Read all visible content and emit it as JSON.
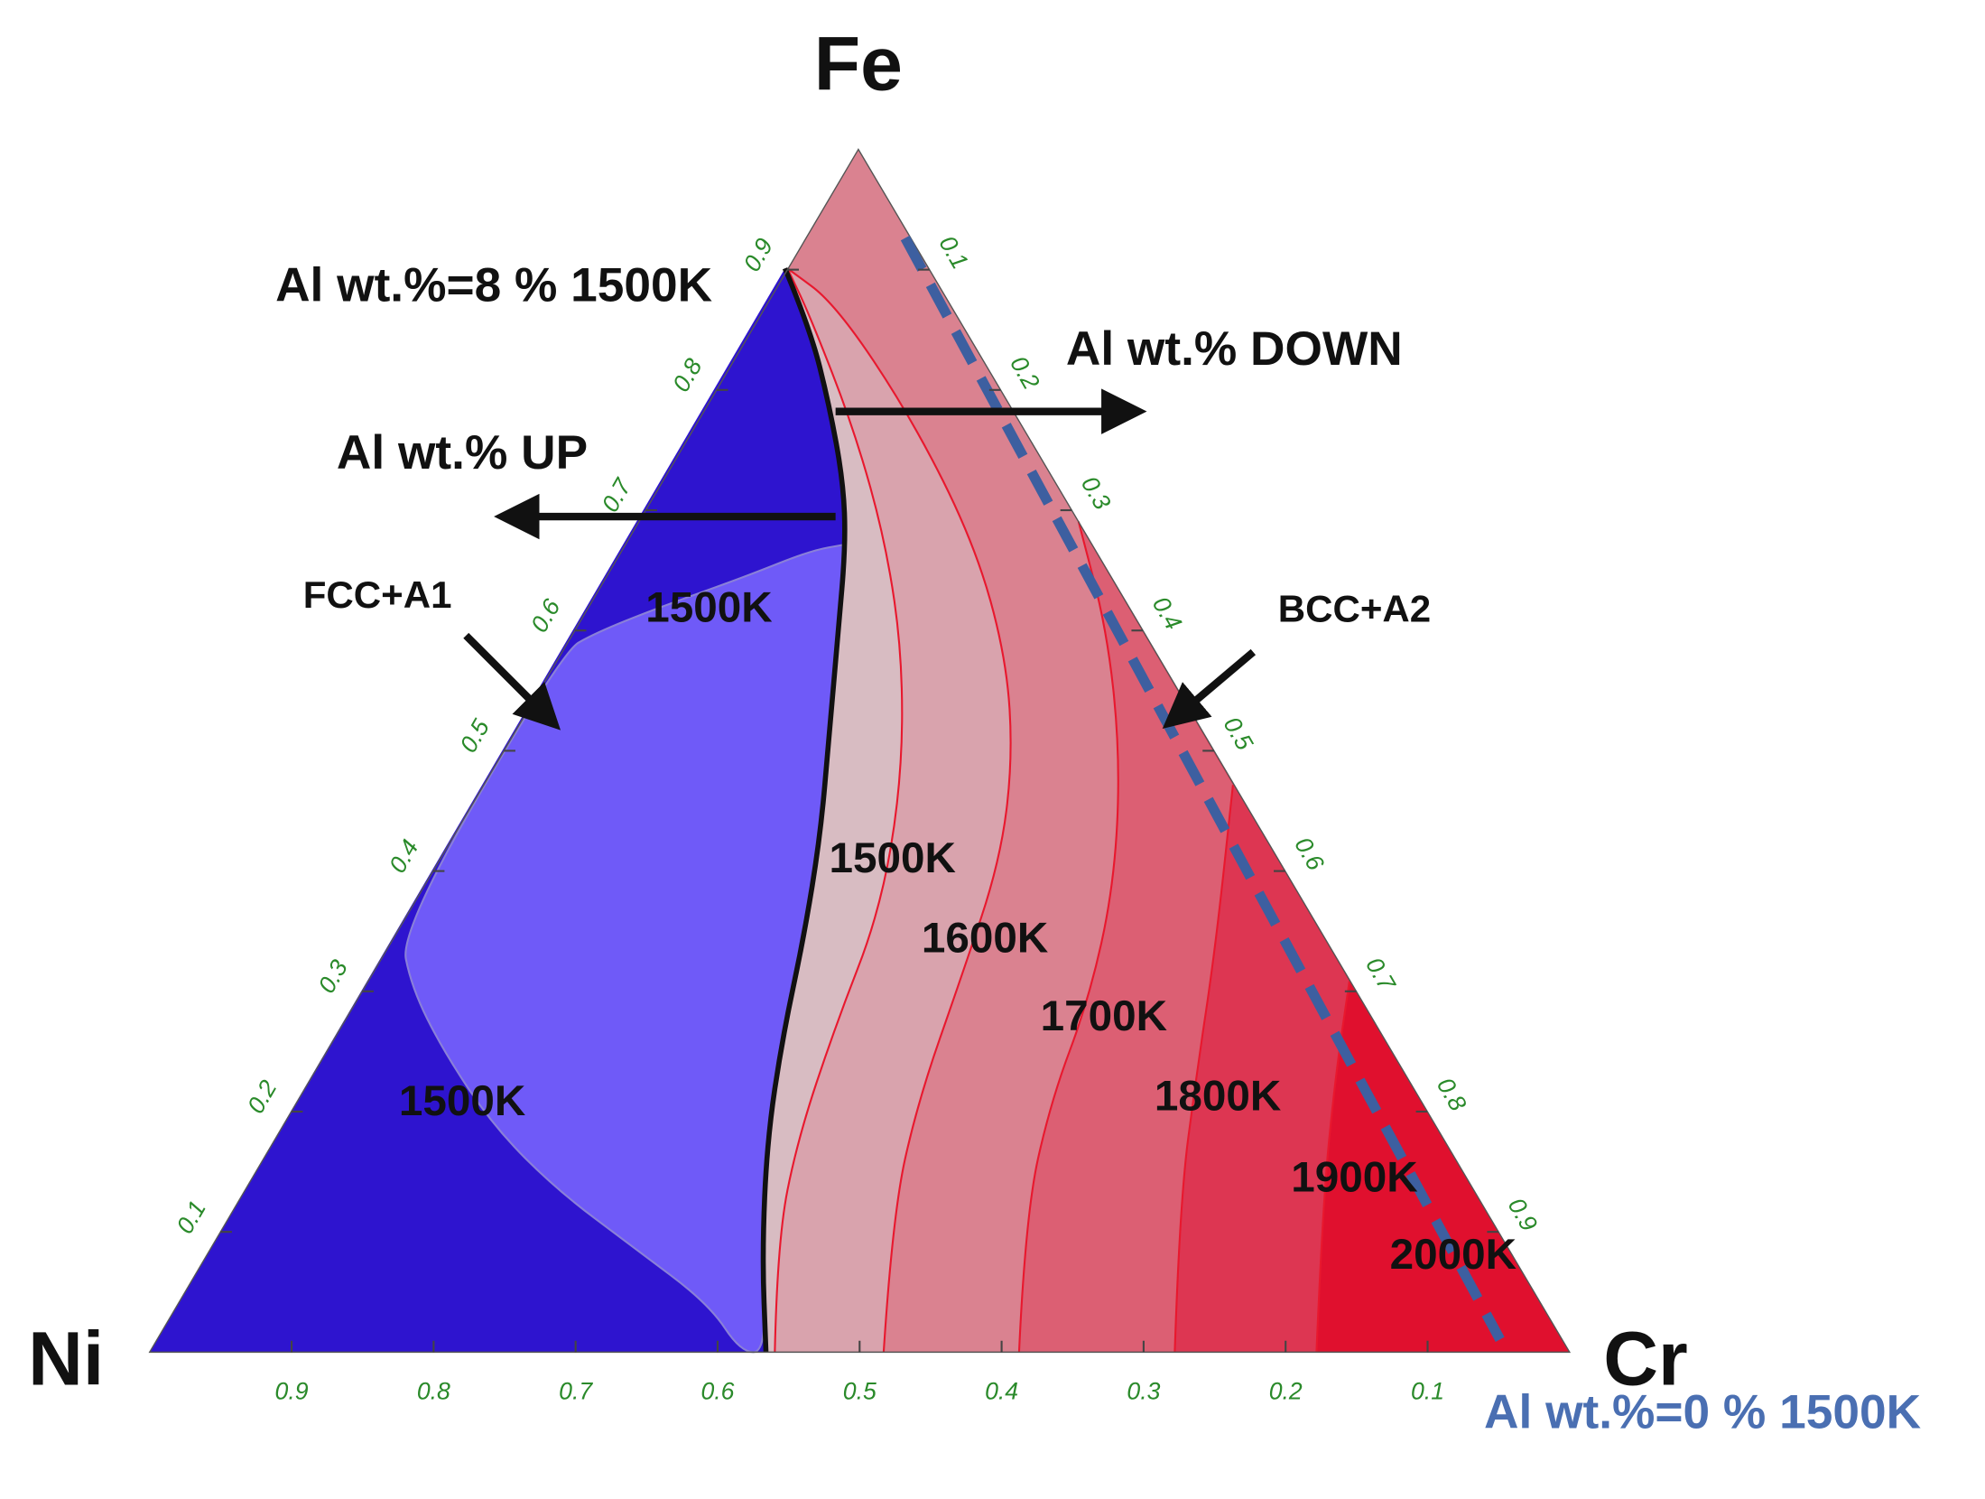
{
  "apex_labels": {
    "top": "Fe",
    "left": "Ni",
    "right": "Cr"
  },
  "annotations": [
    "Al wt.%=8 % 1500K",
    "Al wt.% DOWN",
    "Al wt.% UP",
    "FCC+A1",
    "BCC+A2",
    "Al wt.%=0 % 1500K"
  ],
  "region_labels": [
    "1500K",
    "1500K",
    "1500K",
    "1600K",
    "1700K",
    "1800K",
    "1900K",
    "2000K"
  ],
  "axes": {
    "bottom": [
      0.9,
      0.8,
      0.7,
      0.6,
      0.5,
      0.4,
      0.3,
      0.2,
      0.1
    ],
    "left": [
      0.1,
      0.2,
      0.3,
      0.4,
      0.5,
      0.6,
      0.7,
      0.8,
      0.9
    ],
    "right": [
      0.1,
      0.2,
      0.3,
      0.4,
      0.5,
      0.6,
      0.7,
      0.8,
      0.9
    ]
  }
}
